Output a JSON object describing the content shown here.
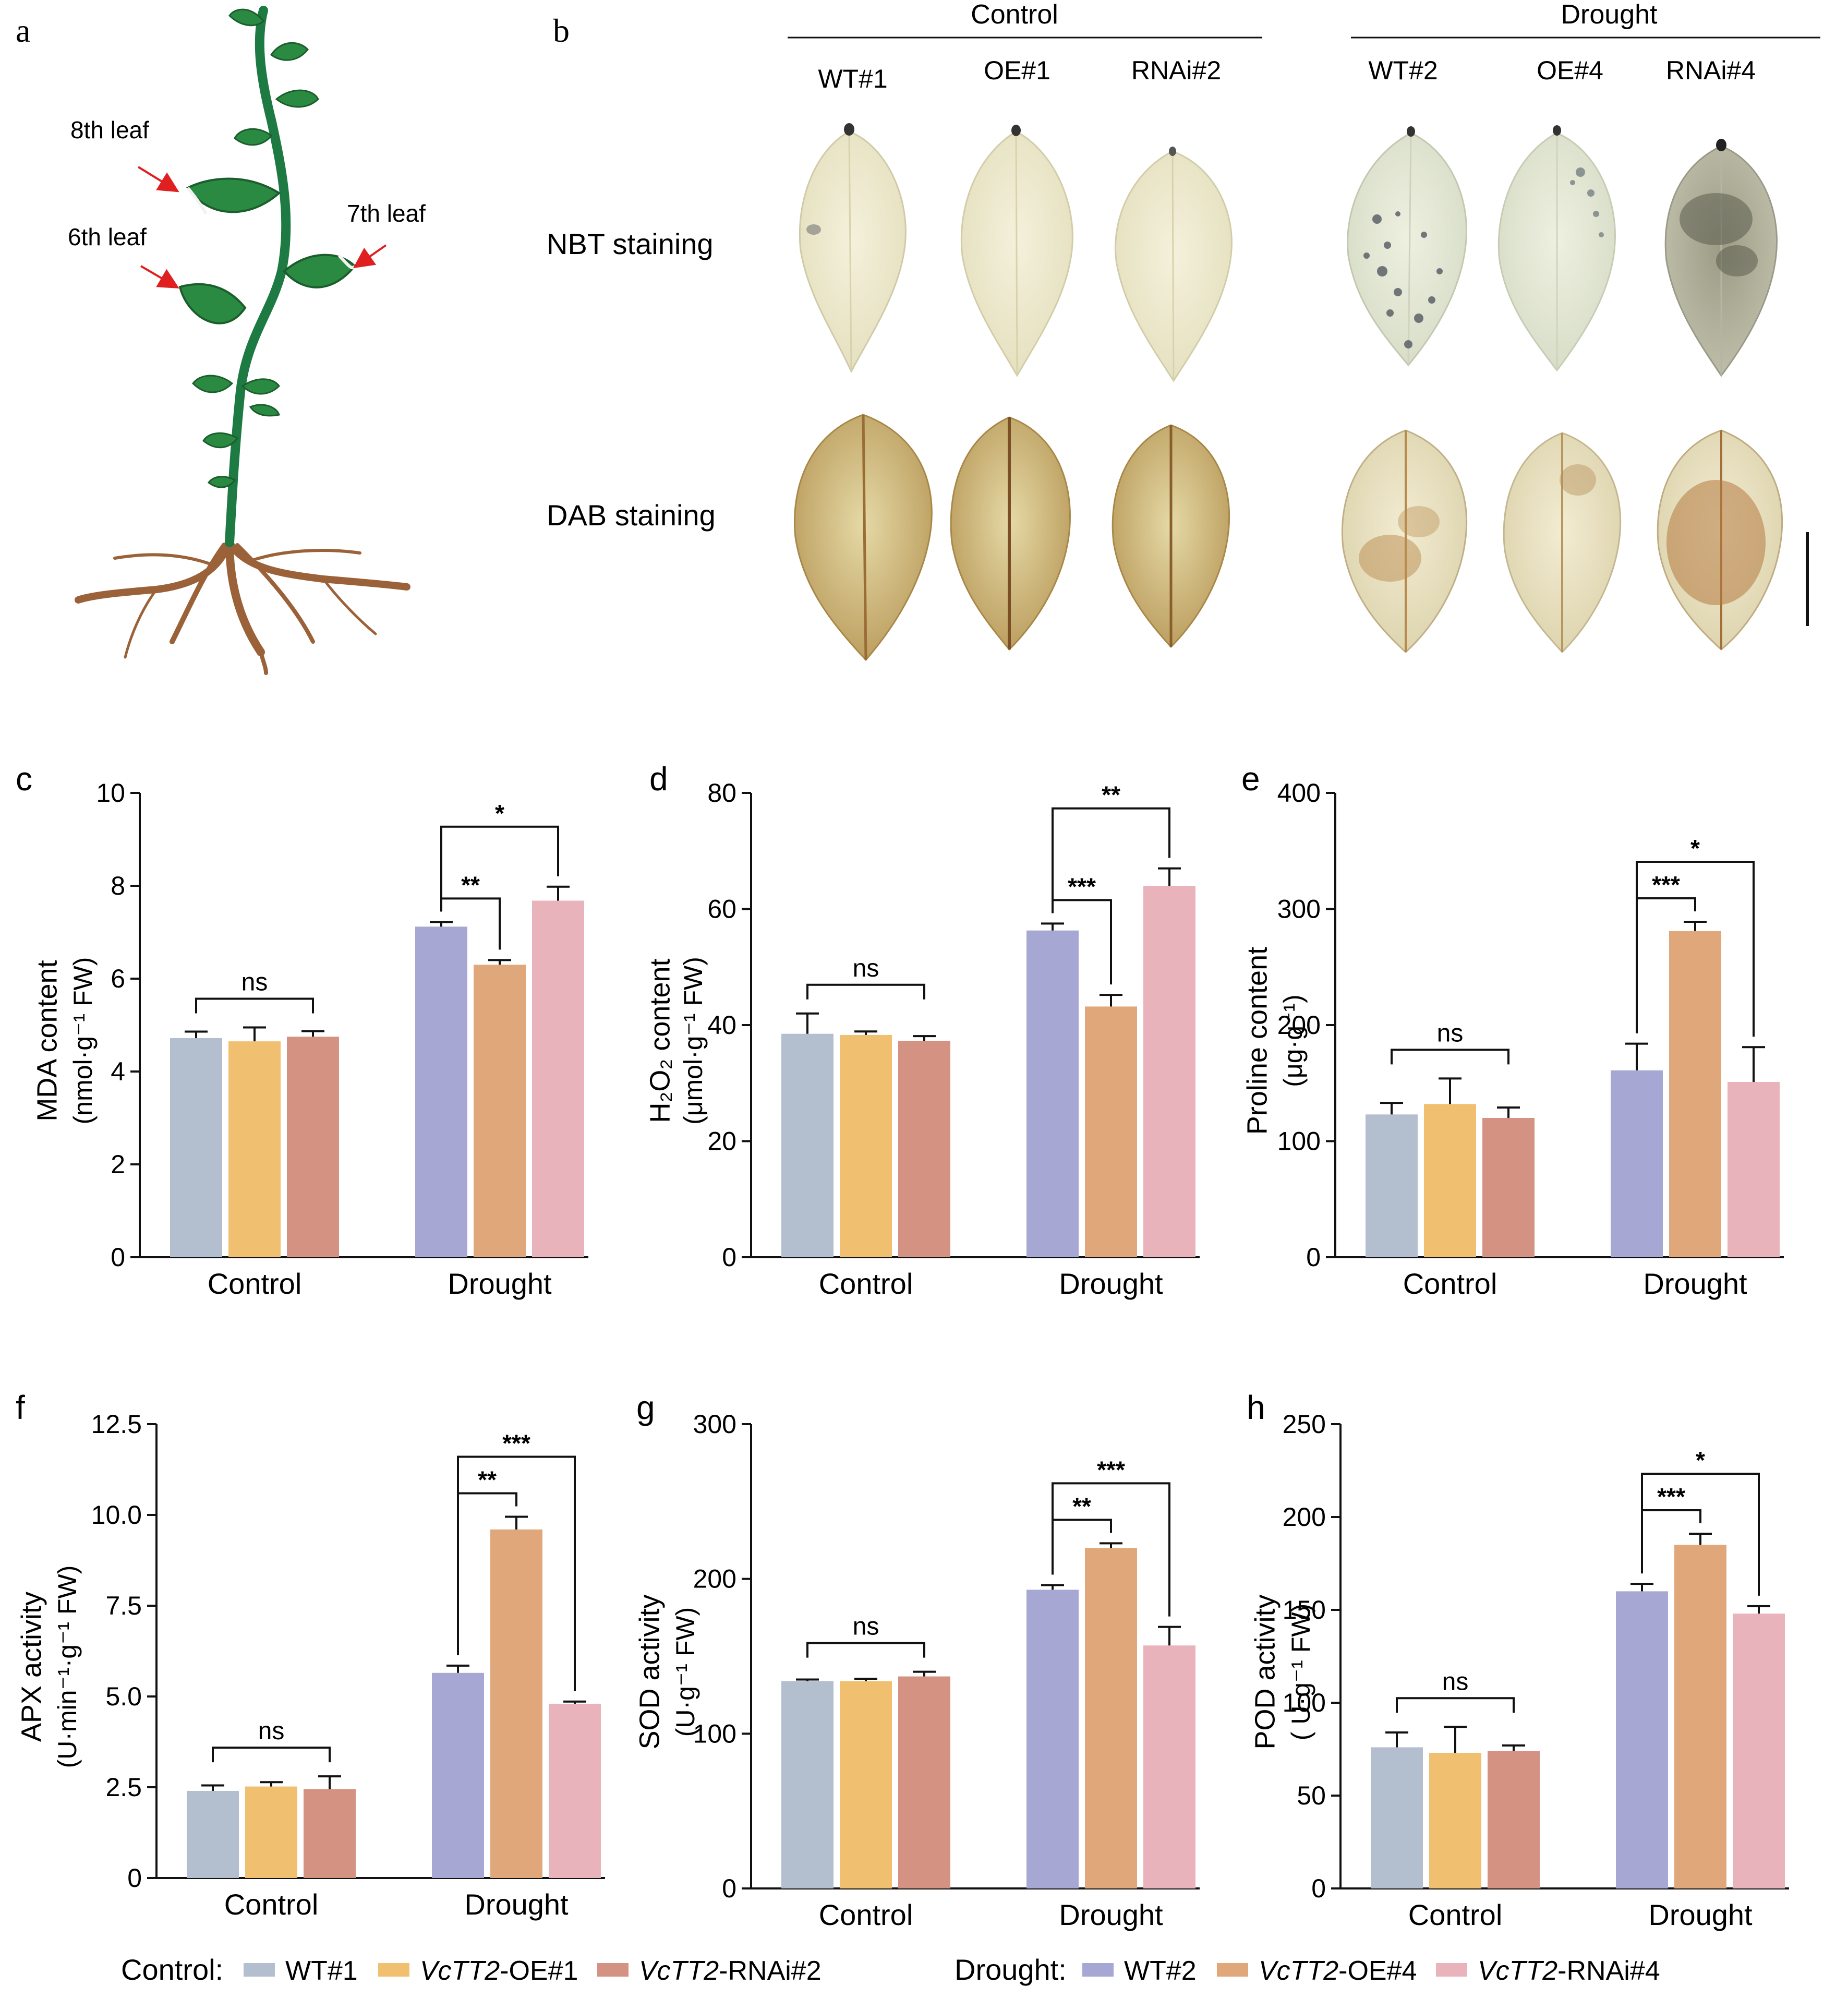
{
  "panels": {
    "a": "a",
    "b": "b",
    "c": "c",
    "d": "d",
    "e": "e",
    "f": "f",
    "g": "g",
    "h": "h"
  },
  "plant": {
    "leaf8": "8th leaf",
    "leaf7": "7th leaf",
    "leaf6": "6th leaf"
  },
  "staining": {
    "group_control": "Control",
    "group_drought": "Drought",
    "columns": [
      "WT#1",
      "OE#1",
      "RNAi#2",
      "WT#2",
      "OE#4",
      "RNAi#4"
    ],
    "rows": [
      "NBT staining",
      "DAB staining"
    ]
  },
  "colors": {
    "wt_control": "#b3bfcf",
    "oe_control": "#f0c070",
    "rnai_control": "#d49283",
    "wt_drought": "#a6a8d3",
    "oe_drought": "#e0a87a",
    "rnai_drought": "#e8b3bb",
    "arrow": "#e02020",
    "stem": "#1c7a42",
    "leaf": "#2a8a42",
    "root": "#9b6239"
  },
  "chart_data": [
    {
      "id": "c",
      "type": "bar",
      "categories": [
        "Control",
        "Drought"
      ],
      "series": [
        {
          "name": "WT",
          "values": [
            4.72,
            7.12
          ],
          "errors": [
            0.14,
            0.1
          ]
        },
        {
          "name": "VcTT2-OE",
          "values": [
            4.65,
            6.3
          ],
          "errors": [
            0.3,
            0.1
          ]
        },
        {
          "name": "VcTT2-RNAi",
          "values": [
            4.75,
            7.68
          ],
          "errors": [
            0.12,
            0.3
          ]
        }
      ],
      "ylabel_line1": "MDA content",
      "ylabel_line2": "(nmol·g⁻¹ FW)",
      "ylim": [
        0,
        10
      ],
      "yticks": [
        "0",
        "2",
        "4",
        "6",
        "8",
        "10"
      ],
      "sig": [
        {
          "group": 0,
          "from": 0,
          "to": 2,
          "label": "ns"
        },
        {
          "group": 1,
          "from": 0,
          "to": 1,
          "label": "**"
        },
        {
          "group": 1,
          "from": 0,
          "to": 2,
          "label": "*"
        }
      ]
    },
    {
      "id": "d",
      "type": "bar",
      "categories": [
        "Control",
        "Drought"
      ],
      "series": [
        {
          "name": "WT",
          "values": [
            38.5,
            56.3
          ],
          "errors": [
            3.5,
            1.2
          ]
        },
        {
          "name": "VcTT2-OE",
          "values": [
            38.3,
            43.2
          ],
          "errors": [
            0.6,
            2
          ]
        },
        {
          "name": "VcTT2-RNAi",
          "values": [
            37.3,
            64
          ],
          "errors": [
            0.8,
            3
          ]
        }
      ],
      "ylabel_line1": "H₂O₂ content",
      "ylabel_line2": "(μmol·g⁻¹ FW)",
      "ylim": [
        0,
        80
      ],
      "yticks": [
        "0",
        "20",
        "40",
        "60",
        "80"
      ],
      "sig": [
        {
          "group": 0,
          "from": 0,
          "to": 2,
          "label": "ns"
        },
        {
          "group": 1,
          "from": 0,
          "to": 1,
          "label": "***"
        },
        {
          "group": 1,
          "from": 0,
          "to": 2,
          "label": "**"
        }
      ]
    },
    {
      "id": "e",
      "type": "bar",
      "categories": [
        "Control",
        "Drought"
      ],
      "series": [
        {
          "name": "WT",
          "values": [
            123,
            161
          ],
          "errors": [
            10,
            23
          ]
        },
        {
          "name": "VcTT2-OE",
          "values": [
            132,
            281
          ],
          "errors": [
            22,
            8
          ]
        },
        {
          "name": "VcTT2-RNAi",
          "values": [
            120,
            151
          ],
          "errors": [
            9,
            30
          ]
        }
      ],
      "ylabel_line1": "Proline content",
      "ylabel_line2": "(μg·g⁻¹)",
      "ylim": [
        0,
        400
      ],
      "yticks": [
        "0",
        "100",
        "200",
        "300",
        "400"
      ],
      "sig": [
        {
          "group": 0,
          "from": 0,
          "to": 2,
          "label": "ns"
        },
        {
          "group": 1,
          "from": 0,
          "to": 1,
          "label": "***"
        },
        {
          "group": 1,
          "from": 0,
          "to": 2,
          "label": "*"
        }
      ]
    },
    {
      "id": "f",
      "type": "bar",
      "categories": [
        "Control",
        "Drought"
      ],
      "series": [
        {
          "name": "WT",
          "values": [
            2.4,
            5.65
          ],
          "errors": [
            0.15,
            0.2
          ]
        },
        {
          "name": "VcTT2-OE",
          "values": [
            2.52,
            9.6
          ],
          "errors": [
            0.12,
            0.35
          ]
        },
        {
          "name": "VcTT2-RNAi",
          "values": [
            2.45,
            4.8
          ],
          "errors": [
            0.35,
            0.06
          ]
        }
      ],
      "ylabel_line1": "APX activity",
      "ylabel_line2": "(U·min⁻¹·g⁻¹ FW)",
      "ylim": [
        0,
        12.5
      ],
      "yticks": [
        "0",
        "2.5",
        "5.0",
        "7.5",
        "10.0",
        "12.5"
      ],
      "sig": [
        {
          "group": 0,
          "from": 0,
          "to": 2,
          "label": "ns"
        },
        {
          "group": 1,
          "from": 0,
          "to": 1,
          "label": "**"
        },
        {
          "group": 1,
          "from": 0,
          "to": 2,
          "label": "***"
        }
      ]
    },
    {
      "id": "g",
      "type": "bar",
      "categories": [
        "Control",
        "Drought"
      ],
      "series": [
        {
          "name": "WT",
          "values": [
            134,
            193
          ],
          "errors": [
            1,
            3
          ]
        },
        {
          "name": "VcTT2-OE",
          "values": [
            134,
            220
          ],
          "errors": [
            1.5,
            3
          ]
        },
        {
          "name": "VcTT2-RNAi",
          "values": [
            137,
            157
          ],
          "errors": [
            3,
            12
          ]
        }
      ],
      "ylabel_line1": "SOD activity",
      "ylabel_line2": "(U·g⁻¹ FW)",
      "ylim": [
        0,
        300
      ],
      "yticks": [
        "0",
        "100",
        "200",
        "300"
      ],
      "sig": [
        {
          "group": 0,
          "from": 0,
          "to": 2,
          "label": "ns"
        },
        {
          "group": 1,
          "from": 0,
          "to": 1,
          "label": "**"
        },
        {
          "group": 1,
          "from": 0,
          "to": 2,
          "label": "***"
        }
      ]
    },
    {
      "id": "h",
      "type": "bar",
      "categories": [
        "Control",
        "Drought"
      ],
      "series": [
        {
          "name": "WT",
          "values": [
            76,
            160
          ],
          "errors": [
            8,
            4
          ]
        },
        {
          "name": "VcTT2-OE",
          "values": [
            73,
            185
          ],
          "errors": [
            14,
            6
          ]
        },
        {
          "name": "VcTT2-RNAi",
          "values": [
            74,
            148
          ],
          "errors": [
            3,
            4
          ]
        }
      ],
      "ylabel_line1": "POD activity",
      "ylabel_line2": "( U·g⁻¹ FW)",
      "ylim": [
        0,
        250
      ],
      "yticks": [
        "0",
        "50",
        "100",
        "150",
        "200",
        "250"
      ],
      "sig": [
        {
          "group": 0,
          "from": 0,
          "to": 2,
          "label": "ns"
        },
        {
          "group": 1,
          "from": 0,
          "to": 1,
          "label": "***"
        },
        {
          "group": 1,
          "from": 0,
          "to": 2,
          "label": "*"
        }
      ]
    }
  ],
  "legend": {
    "control_title": "Control:",
    "drought_title": "Drought:",
    "control_items": [
      {
        "prefix": "",
        "italic": "",
        "suffix": "WT#1"
      },
      {
        "prefix": "",
        "italic": "VcTT2",
        "suffix": "-OE#1"
      },
      {
        "prefix": "",
        "italic": "VcTT2",
        "suffix": "-RNAi#2"
      }
    ],
    "drought_items": [
      {
        "prefix": "",
        "italic": "",
        "suffix": "WT#2"
      },
      {
        "prefix": "",
        "italic": "VcTT2",
        "suffix": "-OE#4"
      },
      {
        "prefix": "",
        "italic": "VcTT2",
        "suffix": "-RNAi#4"
      }
    ]
  }
}
